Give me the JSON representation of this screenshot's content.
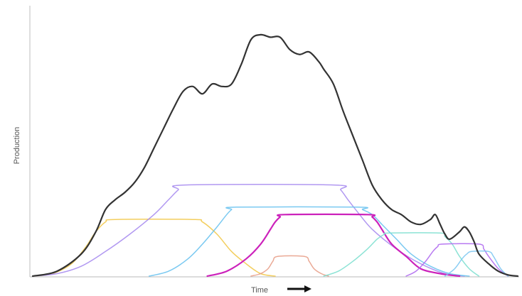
{
  "chart_data": {
    "type": "line",
    "title": "",
    "xlabel": "Time",
    "ylabel": "Production",
    "x_direction_arrow": "right-arrow-icon",
    "xlim": [
      0,
      100
    ],
    "ylim": [
      0,
      100
    ],
    "grid": false,
    "legend": "none",
    "series": [
      {
        "color": "#f2c94c",
        "stroke_width": 1.5,
        "opacity": 0.9,
        "x": [
          0,
          4,
          8,
          11,
          13,
          15,
          17,
          33,
          35,
          38,
          41,
          44,
          47,
          50
        ],
        "values": [
          0,
          1,
          5,
          12,
          18,
          22,
          23,
          23,
          22,
          17,
          10,
          5,
          1,
          0
        ]
      },
      {
        "color": "#a98df0",
        "stroke_width": 1.5,
        "opacity": 0.9,
        "x": [
          0,
          5,
          10,
          15,
          20,
          25,
          28,
          30,
          31.5,
          62,
          63.5,
          65,
          67,
          70,
          75,
          80,
          85,
          89
        ],
        "values": [
          0,
          1,
          4,
          10,
          17,
          25,
          31,
          35,
          37,
          37,
          35,
          31,
          26,
          19,
          11,
          5,
          1,
          0
        ]
      },
      {
        "color": "#6cc3f0",
        "stroke_width": 1.5,
        "opacity": 0.9,
        "x": [
          24,
          28,
          32,
          35,
          38,
          40,
          41,
          42,
          67,
          68,
          70,
          72,
          75,
          78,
          82,
          86,
          90
        ],
        "values": [
          0,
          2,
          7,
          13,
          20,
          25,
          27,
          28,
          28,
          27,
          25,
          21,
          15,
          9,
          4,
          1,
          0
        ]
      },
      {
        "color": "#cc22bb",
        "stroke_width": 2.2,
        "opacity": 1,
        "x": [
          36,
          40,
          44,
          47,
          49,
          50,
          51,
          52,
          69,
          70,
          71,
          72,
          74,
          77,
          80,
          84,
          88
        ],
        "values": [
          0,
          2,
          7,
          13,
          19,
          22,
          24,
          25,
          25,
          24,
          22,
          19,
          13,
          8,
          3,
          1,
          0
        ]
      },
      {
        "color": "#e8a08a",
        "stroke_width": 1.5,
        "opacity": 0.9,
        "x": [
          45,
          47,
          48.5,
          49.5,
          50.5,
          56,
          57,
          58,
          59.5,
          61
        ],
        "values": [
          0,
          1,
          3,
          6,
          8,
          8,
          6,
          3,
          1,
          0
        ]
      },
      {
        "color": "#7fe0d0",
        "stroke_width": 1.5,
        "opacity": 0.9,
        "x": [
          60,
          63,
          66,
          69,
          71,
          72.5,
          73.5,
          84,
          85,
          86.5,
          88,
          90,
          92
        ],
        "values": [
          0,
          2,
          6,
          11,
          15,
          17,
          17.5,
          17.5,
          16,
          13,
          8,
          3,
          0
        ]
      },
      {
        "color": "#b06bf0",
        "stroke_width": 1.5,
        "opacity": 0.9,
        "x": [
          77,
          79,
          81,
          82.5,
          83.5,
          84.5,
          92,
          93,
          94,
          96,
          98
        ],
        "values": [
          0,
          2,
          6,
          10,
          12,
          13,
          13,
          11,
          8,
          3,
          0
        ]
      },
      {
        "color": "#7ec8f2",
        "stroke_width": 1.5,
        "opacity": 0.9,
        "x": [
          85,
          87,
          88.5,
          89.5,
          90.5,
          94,
          95,
          96.5,
          98
        ],
        "values": [
          0,
          3,
          7,
          9,
          10,
          10,
          8,
          3,
          0
        ]
      },
      {
        "color": "#333333",
        "stroke_width": 2.2,
        "opacity": 1,
        "x": [
          0,
          5,
          10,
          13,
          15,
          17,
          19,
          21,
          23,
          25,
          27,
          29,
          31,
          33,
          35,
          37,
          39,
          41,
          43,
          45,
          47,
          49,
          51,
          53,
          55,
          57,
          59,
          60,
          62,
          64,
          66,
          68,
          70,
          72,
          74,
          76,
          78,
          80,
          82,
          83,
          84,
          85,
          86,
          88,
          89,
          90,
          91,
          92,
          94,
          96,
          98,
          100
        ],
        "values": [
          0,
          2,
          9,
          18,
          27,
          31,
          34,
          38,
          44,
          52,
          60,
          68,
          75,
          77,
          74,
          78,
          77,
          78,
          86,
          96,
          98,
          97,
          97,
          92,
          90,
          91,
          87,
          84,
          78,
          67,
          57,
          47,
          37,
          31,
          27,
          25,
          22,
          21,
          23,
          25,
          21,
          17,
          15,
          18,
          20,
          18,
          14,
          9,
          5,
          2,
          0.5,
          0
        ]
      }
    ]
  }
}
